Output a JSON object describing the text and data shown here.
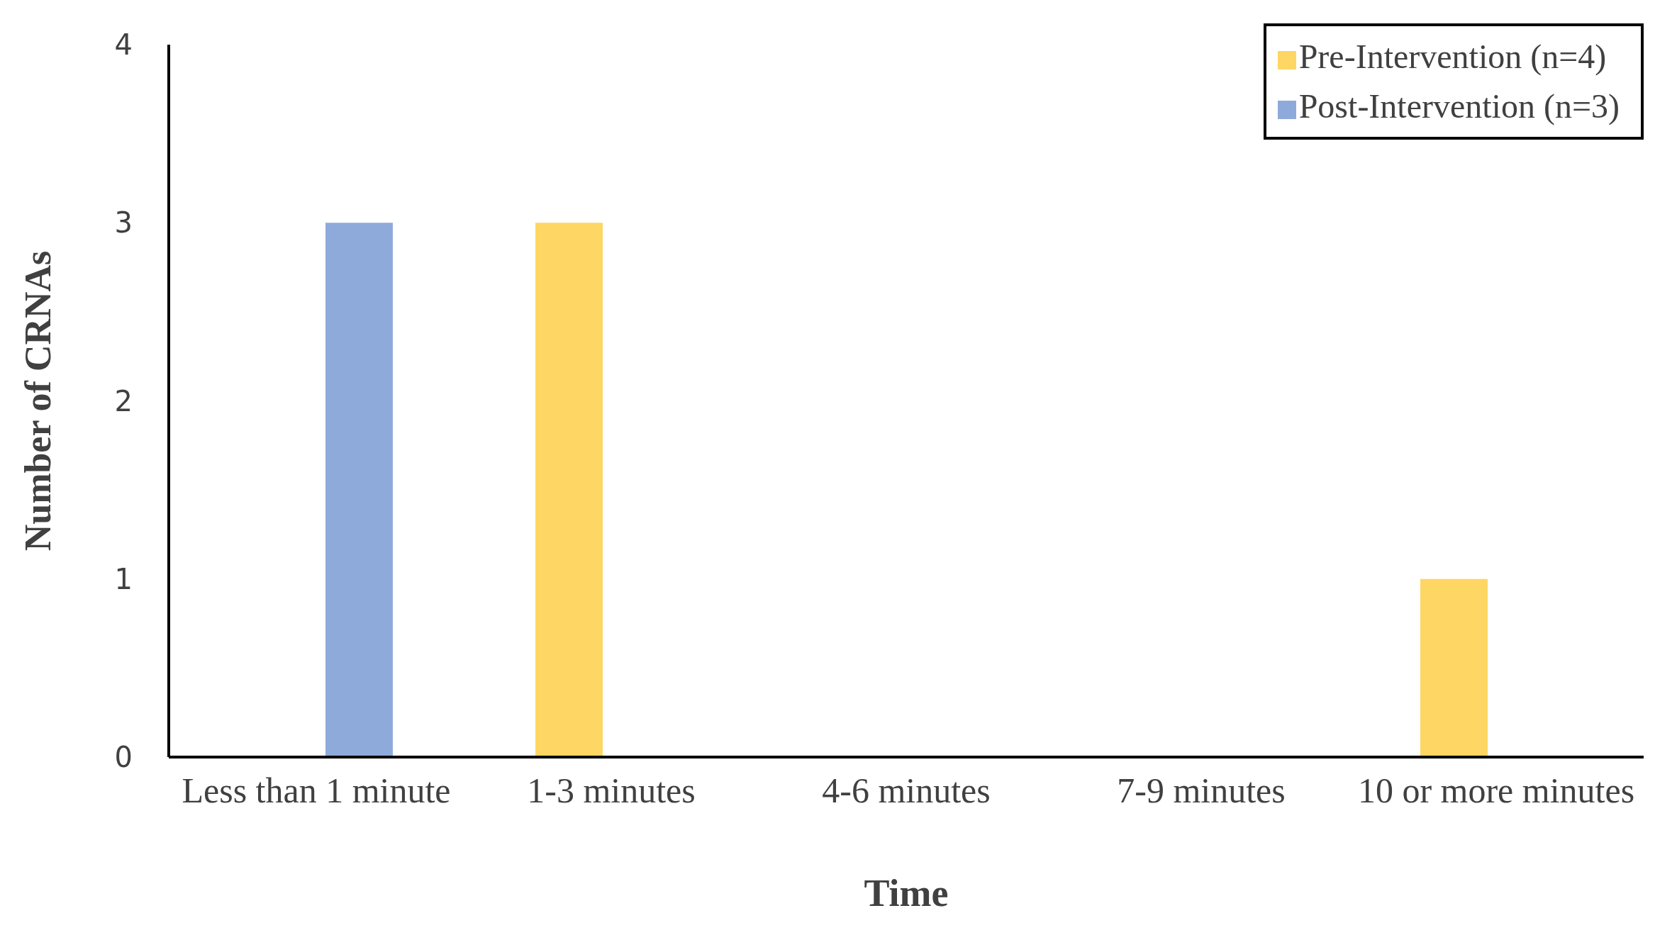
{
  "chart_data": {
    "type": "bar",
    "xlabel": "Time",
    "ylabel": "Number of CRNAs",
    "categories": [
      "Less than 1 minute",
      "1-3 minutes",
      "4-6 minutes",
      "7-9 minutes",
      "10 or more minutes"
    ],
    "series": [
      {
        "name": "Pre-Intervention (n=4)",
        "color": "#fdd663",
        "values": [
          0,
          3,
          0,
          0,
          1
        ]
      },
      {
        "name": "Post-Intervention (n=3)",
        "color": "#8eaadb",
        "values": [
          3,
          0,
          0,
          0,
          0
        ]
      }
    ],
    "ylim": [
      0,
      4
    ],
    "yticks": [
      0,
      1,
      2,
      3,
      4
    ],
    "grid": false,
    "legend": "top right"
  }
}
